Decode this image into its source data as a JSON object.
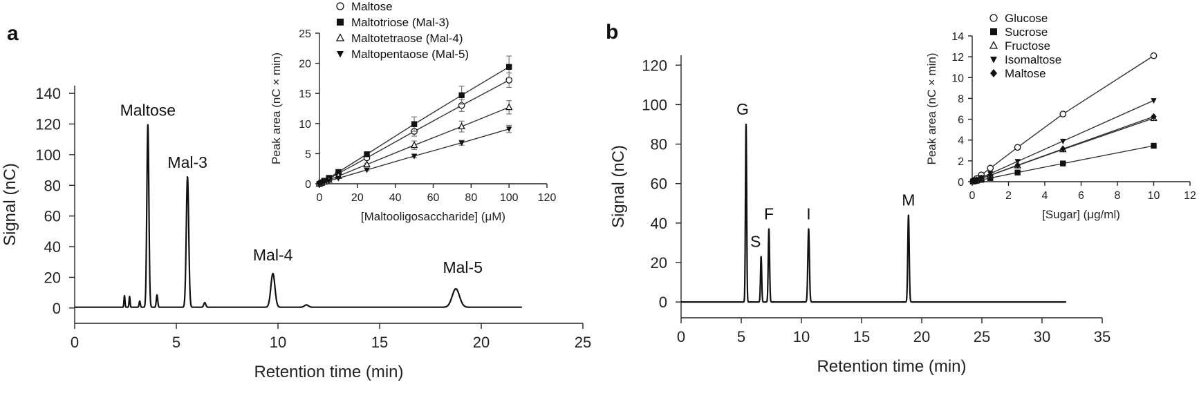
{
  "panel_labels": {
    "a": "a",
    "b": "b"
  },
  "colors": {
    "ink": "#111111",
    "errorbar": "#777777"
  },
  "chart_data": [
    {
      "id": "a-main",
      "type": "line",
      "title": "",
      "xlabel": "Retention time (min)",
      "ylabel": "Signal (nC)",
      "xlim": [
        0,
        25
      ],
      "ylim": [
        -10,
        145
      ],
      "xticks": [
        0,
        5,
        10,
        15,
        20,
        25
      ],
      "yticks": [
        0,
        20,
        40,
        60,
        80,
        100,
        120,
        140
      ],
      "baseline": 0.5,
      "trace_end": 22,
      "peaks": [
        {
          "label": "Maltose",
          "rt": 3.6,
          "height": 119,
          "width": 0.05
        },
        {
          "label": "Mal-3",
          "rt": 5.55,
          "height": 85,
          "width": 0.06
        },
        {
          "label": "Mal-4",
          "rt": 9.75,
          "height": 22,
          "width": 0.1
        },
        {
          "label": "Mal-5",
          "rt": 18.75,
          "height": 12,
          "width": 0.18
        }
      ],
      "minor_peaks": [
        {
          "rt": 2.45,
          "height": 7.5,
          "width": 0.025
        },
        {
          "rt": 2.7,
          "height": 7,
          "width": 0.025
        },
        {
          "rt": 3.2,
          "height": 4,
          "width": 0.03
        },
        {
          "rt": 4.05,
          "height": 8,
          "width": 0.035
        },
        {
          "rt": 6.4,
          "height": 3,
          "width": 0.05
        },
        {
          "rt": 11.4,
          "height": 1.5,
          "width": 0.1
        }
      ]
    },
    {
      "id": "a-inset",
      "type": "scatter",
      "xlabel": "[Maltooligosaccharide] (μM)",
      "ylabel": "Peak area (nC × min)",
      "xlim": [
        0,
        120
      ],
      "ylim": [
        0,
        25
      ],
      "xticks": [
        0,
        20,
        40,
        60,
        80,
        100,
        120
      ],
      "yticks": [
        0,
        5,
        10,
        15,
        20,
        25
      ],
      "x": [
        0,
        1,
        2.5,
        5,
        10,
        25,
        50,
        75,
        100
      ],
      "series": [
        {
          "name": "Maltose",
          "marker": "circle",
          "values": [
            0,
            0.17,
            0.4,
            0.85,
            1.7,
            4.3,
            8.7,
            13.0,
            17.2
          ],
          "err": [
            0,
            0,
            0,
            0,
            0,
            0.3,
            0.8,
            1.0,
            1.2
          ]
        },
        {
          "name": "Maltotriose (Mal-3)",
          "marker": "square",
          "values": [
            0,
            0.2,
            0.49,
            0.98,
            1.95,
            4.9,
            9.9,
            14.7,
            19.4
          ],
          "err": [
            0,
            0,
            0,
            0,
            0,
            0.3,
            1.2,
            1.5,
            1.8
          ]
        },
        {
          "name": "Maltotetraose (Mal-4)",
          "marker": "triangle-up",
          "values": [
            0,
            0.13,
            0.32,
            0.64,
            1.28,
            3.2,
            6.4,
            9.5,
            12.7
          ],
          "err": [
            0,
            0,
            0,
            0,
            0,
            0.2,
            0.7,
            0.9,
            1.1
          ]
        },
        {
          "name": "Maltopentaose (Mal-5)",
          "marker": "triangle-down",
          "values": [
            0,
            0.09,
            0.23,
            0.46,
            0.92,
            2.3,
            4.6,
            6.8,
            9.1
          ],
          "err": [
            0,
            0,
            0,
            0,
            0,
            0.15,
            0.3,
            0.4,
            0.6
          ]
        }
      ]
    },
    {
      "id": "b-main",
      "type": "line",
      "title": "",
      "xlabel": "Retention time (min)",
      "ylabel": "Signal (nC)",
      "xlim": [
        0,
        35
      ],
      "ylim": [
        -8,
        125
      ],
      "xticks": [
        0,
        5,
        10,
        15,
        20,
        25,
        30,
        35
      ],
      "yticks": [
        0,
        20,
        40,
        60,
        80,
        100,
        120
      ],
      "baseline": 0,
      "trace_end": 32,
      "peaks": [
        {
          "label": "G",
          "rt": 5.4,
          "height": 90,
          "width": 0.05
        },
        {
          "label": "S",
          "rt": 6.65,
          "height": 23,
          "width": 0.05
        },
        {
          "label": "F",
          "rt": 7.3,
          "height": 37,
          "width": 0.055
        },
        {
          "label": "I",
          "rt": 10.6,
          "height": 37,
          "width": 0.065
        },
        {
          "label": "M",
          "rt": 18.9,
          "height": 44,
          "width": 0.06
        }
      ],
      "minor_peaks": []
    },
    {
      "id": "b-inset",
      "type": "scatter",
      "xlabel": "[Sugar] (μg/ml)",
      "ylabel": "Peak area (nC × min)",
      "xlim": [
        0,
        12
      ],
      "ylim": [
        0,
        14
      ],
      "xticks": [
        0,
        2,
        4,
        6,
        8,
        10,
        12
      ],
      "yticks": [
        0,
        2,
        4,
        6,
        8,
        10,
        12,
        14
      ],
      "x": [
        0.05,
        0.1,
        0.25,
        0.5,
        1,
        2.5,
        5,
        10
      ],
      "series": [
        {
          "name": "Glucose",
          "marker": "circle",
          "values": [
            0.06,
            0.12,
            0.3,
            0.65,
            1.3,
            3.3,
            6.5,
            12.1
          ]
        },
        {
          "name": "Sucrose",
          "marker": "square",
          "values": [
            0.02,
            0.04,
            0.09,
            0.18,
            0.35,
            0.88,
            1.75,
            3.45
          ]
        },
        {
          "name": "Fructose",
          "marker": "triangle-up",
          "values": [
            0.03,
            0.06,
            0.15,
            0.31,
            0.62,
            1.55,
            3.1,
            6.1
          ]
        },
        {
          "name": "Isomaltose",
          "marker": "triangle-down",
          "values": [
            0.04,
            0.08,
            0.2,
            0.4,
            0.78,
            1.95,
            3.9,
            7.8
          ]
        },
        {
          "name": "Maltose",
          "marker": "diamond",
          "values": [
            0.03,
            0.06,
            0.16,
            0.32,
            0.63,
            1.58,
            3.15,
            6.25
          ]
        }
      ]
    }
  ]
}
